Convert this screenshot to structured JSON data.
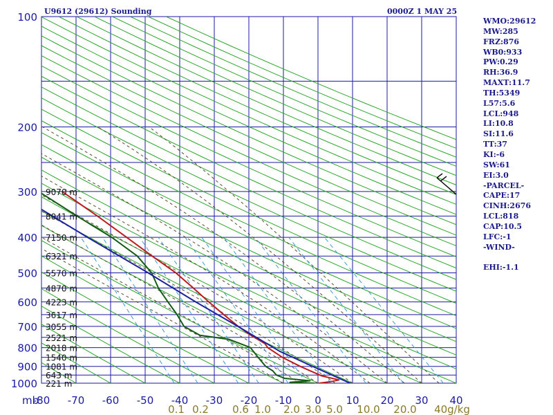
{
  "title_left": "U9612 (29612) Sounding",
  "title_right": "0000Z  1 MAY 25",
  "colors": {
    "axis": "#1a1aa6",
    "grid": "#1a1aa6",
    "dry_adiabat": "#2aa52a",
    "moist_adiabat": "#5a4a2a",
    "mixing_ratio": "#3a9ad0",
    "temperature": "#c01a1a",
    "dewpoint": "#155a15",
    "parcel": "#1a22a0",
    "wind_barb": "#111111",
    "mixing_label": "#8a7a2a"
  },
  "indices": [
    "WMO:29612",
    "MW:285",
    "FRZ:876",
    "WB0:933",
    "PW:0.29",
    "RH:36.9",
    "MAXT:11.7",
    "TH:5349",
    "L57:5.6",
    "LCL:948",
    "LI:10.8",
    "SI:11.6",
    "TT:37",
    "KI:-6",
    "SW:61",
    "EI:3.0",
    "-PARCEL-",
    "CAPE:17",
    "CINH:2676",
    "LCL:818",
    "CAP:10.5",
    "LFC:-1",
    "-WIND-",
    "",
    "EHI:-1.1"
  ],
  "chart_data": {
    "type": "skew-t",
    "pressure_axis": {
      "unit_label": "mb",
      "ticks": [
        100,
        200,
        300,
        400,
        500,
        600,
        700,
        800,
        900,
        1000
      ],
      "range": [
        100,
        1000
      ],
      "scale": "log"
    },
    "temperature_axis": {
      "ticks": [
        -80,
        -70,
        -60,
        -50,
        -40,
        -30,
        -20,
        -10,
        0,
        10,
        20,
        30,
        40
      ],
      "range": [
        -80,
        40
      ]
    },
    "mixing_ratio_labels": [
      "0.1",
      "0.2",
      "0.6",
      "1.0",
      "2.0",
      "3.0",
      "5.0",
      "10.0",
      "20.0",
      "40g/kg"
    ],
    "height_labels": [
      {
        "p": 300,
        "label": "9070 m"
      },
      {
        "p": 350,
        "label": "8041 m"
      },
      {
        "p": 400,
        "label": "7150 m"
      },
      {
        "p": 450,
        "label": "6321 m"
      },
      {
        "p": 500,
        "label": "5570 m"
      },
      {
        "p": 550,
        "label": "4870 m"
      },
      {
        "p": 600,
        "label": "4223 m"
      },
      {
        "p": 650,
        "label": "3617 m"
      },
      {
        "p": 700,
        "label": "3055 m"
      },
      {
        "p": 750,
        "label": "2521 m"
      },
      {
        "p": 800,
        "label": "2018 m"
      },
      {
        "p": 850,
        "label": "1540 m"
      },
      {
        "p": 900,
        "label": "1081 m"
      },
      {
        "p": 950,
        "label": "643 m"
      },
      {
        "p": 1000,
        "label": "221 m"
      }
    ],
    "series": [
      {
        "name": "temperature",
        "points": [
          {
            "p": 1010,
            "t": 0.0
          },
          {
            "p": 1000,
            "t": 0.3
          },
          {
            "p": 990,
            "t": 4.0
          },
          {
            "p": 980,
            "t": 6.5
          },
          {
            "p": 955,
            "t": 2.0
          },
          {
            "p": 925,
            "t": -0.7
          },
          {
            "p": 900,
            "t": -3.0
          },
          {
            "p": 850,
            "t": -7.0
          },
          {
            "p": 800,
            "t": -10.0
          },
          {
            "p": 780,
            "t": -10.3
          },
          {
            "p": 740,
            "t": -13.3
          },
          {
            "p": 700,
            "t": -15.8
          },
          {
            "p": 650,
            "t": -18.5
          },
          {
            "p": 600,
            "t": -21.2
          },
          {
            "p": 550,
            "t": -23.9
          },
          {
            "p": 500,
            "t": -27.0
          },
          {
            "p": 450,
            "t": -31.7
          },
          {
            "p": 400,
            "t": -36.7
          },
          {
            "p": 350,
            "t": -42.4
          },
          {
            "p": 300,
            "t": -49.5
          }
        ]
      },
      {
        "name": "dewpoint",
        "points": [
          {
            "p": 1000,
            "t": -1.0
          },
          {
            "p": 995,
            "t": -8.0
          },
          {
            "p": 985,
            "t": -2.0
          },
          {
            "p": 970,
            "t": -9.0
          },
          {
            "p": 950,
            "t": -11.0
          },
          {
            "p": 925,
            "t": -11.5
          },
          {
            "p": 900,
            "t": -13.0
          },
          {
            "p": 850,
            "t": -14.0
          },
          {
            "p": 800,
            "t": -15.0
          },
          {
            "p": 760,
            "t": -20.0
          },
          {
            "p": 740,
            "t": -28.0
          },
          {
            "p": 700,
            "t": -31.5
          },
          {
            "p": 650,
            "t": -32.0
          },
          {
            "p": 600,
            "t": -33.0
          },
          {
            "p": 550,
            "t": -34.0
          },
          {
            "p": 500,
            "t": -34.0
          },
          {
            "p": 450,
            "t": -36.0
          },
          {
            "p": 400,
            "t": -41.0
          },
          {
            "p": 350,
            "t": -48.3
          },
          {
            "p": 300,
            "t": -56.3
          }
        ]
      },
      {
        "name": "parcel",
        "points": [
          {
            "p": 1000,
            "t": 9.3
          },
          {
            "p": 900,
            "t": 0.6
          },
          {
            "p": 818,
            "t": -7.0
          },
          {
            "p": 700,
            "t": -15.9
          },
          {
            "p": 600,
            "t": -25.0
          },
          {
            "p": 500,
            "t": -35.0
          },
          {
            "p": 400,
            "t": -48.0
          },
          {
            "p": 300,
            "t": -64.0
          },
          {
            "p": 240,
            "t": -75.0
          }
        ]
      }
    ],
    "wind_barb": {
      "p": 280
    },
    "grid": true
  }
}
